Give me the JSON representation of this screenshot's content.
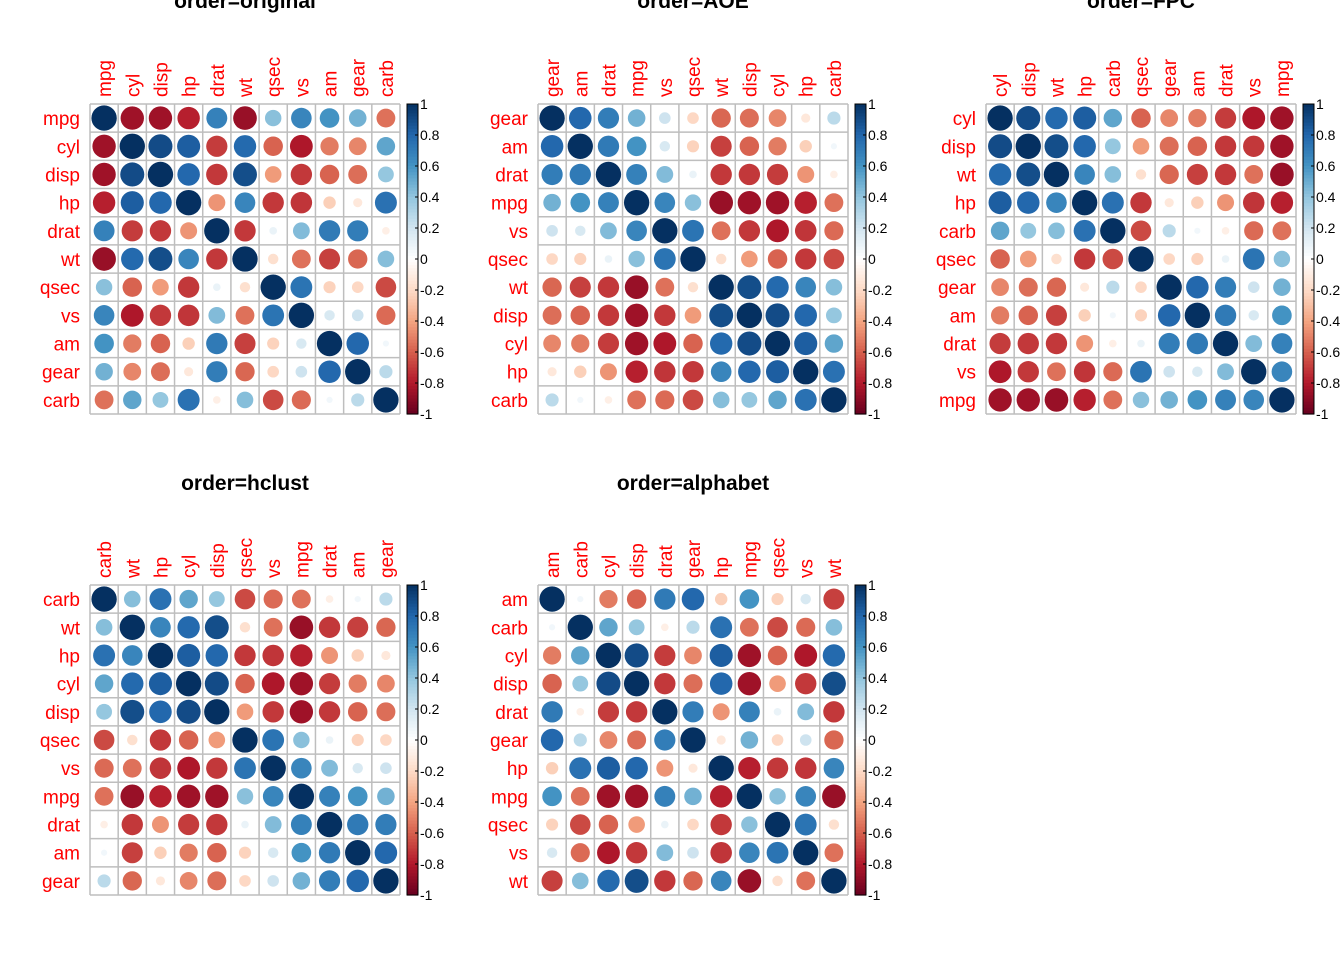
{
  "correlation_matrix": {
    "variables": [
      "mpg",
      "cyl",
      "disp",
      "hp",
      "drat",
      "wt",
      "qsec",
      "vs",
      "am",
      "gear",
      "carb"
    ],
    "values": [
      [
        1.0,
        -0.85,
        -0.85,
        -0.78,
        0.68,
        -0.87,
        0.42,
        0.66,
        0.6,
        0.48,
        -0.55
      ],
      [
        -0.85,
        1.0,
        0.9,
        0.83,
        -0.7,
        0.78,
        -0.59,
        -0.81,
        -0.52,
        -0.49,
        0.53
      ],
      [
        -0.85,
        0.9,
        1.0,
        0.79,
        -0.71,
        0.89,
        -0.43,
        -0.71,
        -0.59,
        -0.56,
        0.39
      ],
      [
        -0.78,
        0.83,
        0.79,
        1.0,
        -0.45,
        0.66,
        -0.71,
        -0.72,
        -0.24,
        -0.13,
        0.75
      ],
      [
        0.68,
        -0.7,
        -0.71,
        -0.45,
        1.0,
        -0.71,
        0.09,
        0.44,
        0.71,
        0.7,
        -0.09
      ],
      [
        -0.87,
        0.78,
        0.89,
        0.66,
        -0.71,
        1.0,
        -0.17,
        -0.55,
        -0.69,
        -0.58,
        0.43
      ],
      [
        0.42,
        -0.59,
        -0.43,
        -0.71,
        0.09,
        -0.17,
        1.0,
        0.74,
        -0.23,
        -0.21,
        -0.66
      ],
      [
        0.66,
        -0.81,
        -0.71,
        -0.72,
        0.44,
        -0.55,
        0.74,
        1.0,
        0.17,
        0.21,
        -0.57
      ],
      [
        0.6,
        -0.52,
        -0.59,
        -0.24,
        0.71,
        -0.69,
        -0.23,
        0.17,
        1.0,
        0.79,
        0.06
      ],
      [
        0.48,
        -0.49,
        -0.56,
        -0.13,
        0.7,
        -0.58,
        -0.21,
        0.21,
        0.79,
        1.0,
        0.27
      ],
      [
        -0.55,
        0.53,
        0.39,
        0.75,
        -0.09,
        0.43,
        -0.66,
        -0.57,
        0.06,
        0.27,
        1.0
      ]
    ]
  },
  "colors": {
    "palette": [
      "#67001F",
      "#B2182B",
      "#D6604D",
      "#F4A582",
      "#FDDBC7",
      "#FFFFFF",
      "#D1E5F0",
      "#92C5DE",
      "#4393C3",
      "#2166AC",
      "#053061"
    ],
    "label": "#FF0000",
    "grid": "#BEBEBE"
  },
  "chart_data": [
    {
      "type": "heatmap",
      "method": "circle",
      "title": "order=original",
      "order": [
        "mpg",
        "cyl",
        "disp",
        "hp",
        "drat",
        "wt",
        "qsec",
        "vs",
        "am",
        "gear",
        "carb"
      ],
      "colorbar_ticks": [
        "1",
        "0.8",
        "0.6",
        "0.4",
        "0.2",
        "0",
        "-0.2",
        "-0.4",
        "-0.6",
        "-0.8",
        "-1"
      ],
      "range": [
        -1,
        1
      ]
    },
    {
      "type": "heatmap",
      "method": "circle",
      "title": "order=AOE",
      "order": [
        "gear",
        "am",
        "drat",
        "mpg",
        "vs",
        "qsec",
        "wt",
        "disp",
        "cyl",
        "hp",
        "carb"
      ],
      "colorbar_ticks": [
        "1",
        "0.8",
        "0.6",
        "0.4",
        "0.2",
        "0",
        "-0.2",
        "-0.4",
        "-0.6",
        "-0.8",
        "-1"
      ],
      "range": [
        -1,
        1
      ]
    },
    {
      "type": "heatmap",
      "method": "circle",
      "title": "order=FPC",
      "order": [
        "cyl",
        "disp",
        "wt",
        "hp",
        "carb",
        "qsec",
        "gear",
        "am",
        "drat",
        "vs",
        "mpg"
      ],
      "colorbar_ticks": [
        "1",
        "0.8",
        "0.6",
        "0.4",
        "0.2",
        "0",
        "-0.2",
        "-0.4",
        "-0.6",
        "-0.8",
        "-1"
      ],
      "range": [
        -1,
        1
      ]
    },
    {
      "type": "heatmap",
      "method": "circle",
      "title": "order=hclust",
      "order": [
        "carb",
        "wt",
        "hp",
        "cyl",
        "disp",
        "qsec",
        "vs",
        "mpg",
        "drat",
        "am",
        "gear"
      ],
      "colorbar_ticks": [
        "1",
        "0.8",
        "0.6",
        "0.4",
        "0.2",
        "0",
        "-0.2",
        "-0.4",
        "-0.6",
        "-0.8",
        "-1"
      ],
      "range": [
        -1,
        1
      ]
    },
    {
      "type": "heatmap",
      "method": "circle",
      "title": "order=alphabet",
      "order": [
        "am",
        "carb",
        "cyl",
        "disp",
        "drat",
        "gear",
        "hp",
        "mpg",
        "qsec",
        "vs",
        "wt"
      ],
      "colorbar_ticks": [
        "1",
        "0.8",
        "0.6",
        "0.4",
        "0.2",
        "0",
        "-0.2",
        "-0.4",
        "-0.6",
        "-0.8",
        "-1"
      ],
      "range": [
        -1,
        1
      ]
    }
  ]
}
